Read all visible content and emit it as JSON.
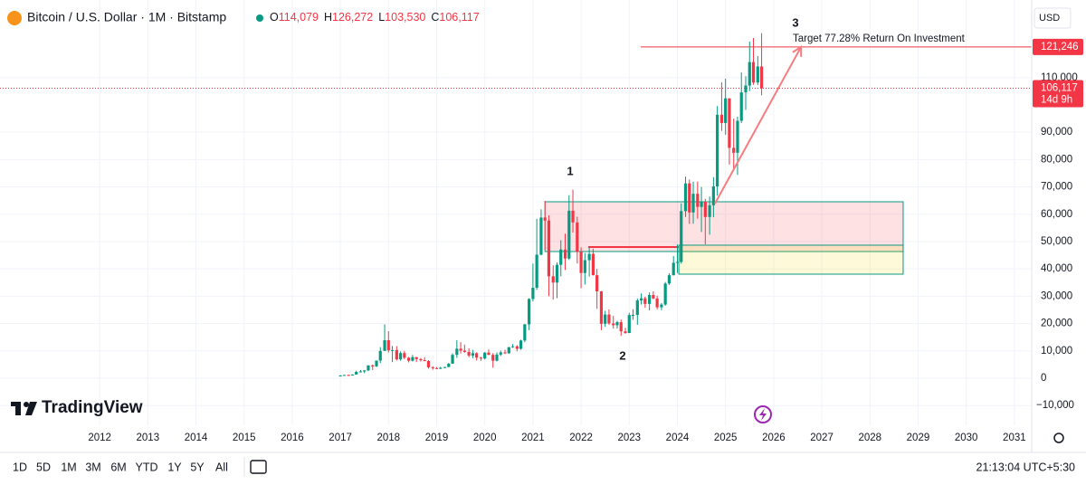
{
  "header": {
    "title": "Bitcoin / U.S. Dollar · 1M · Bitstamp",
    "ohlc_names": [
      "O",
      "H",
      "L",
      "C"
    ],
    "ohlc_values": [
      "114,079",
      "126,272",
      "103,530",
      "106,117"
    ],
    "currency": "USD"
  },
  "chart_data": {
    "type": "candlestick",
    "up_color": "#089981",
    "down_color": "#f23645",
    "grid": true,
    "xlim": [
      2009.93,
      2031.36
    ],
    "xticks": [
      2012,
      2013,
      2014,
      2015,
      2016,
      2017,
      2018,
      2019,
      2020,
      2021,
      2022,
      2023,
      2024,
      2025,
      2026,
      2027,
      2028,
      2029,
      2030,
      2031
    ],
    "ylim": [
      -16560,
      136750
    ],
    "yticks": [
      {
        "value": -10000,
        "label": "−10,000"
      },
      0,
      {
        "value": 10000,
        "label": "10,000"
      },
      {
        "value": 20000,
        "label": "20,000"
      },
      {
        "value": 30000,
        "label": "30,000"
      },
      {
        "value": 40000,
        "label": "40,000"
      },
      {
        "value": 50000,
        "label": "50,000"
      },
      {
        "value": 60000,
        "label": "60,000"
      },
      {
        "value": 70000,
        "label": "70,000"
      },
      {
        "value": 80000,
        "label": "80,000"
      },
      {
        "value": 90000,
        "label": "90,000"
      },
      {
        "value": 110000,
        "label": "110,000"
      }
    ],
    "x": [
      2017.0,
      2017.08,
      2017.17,
      2017.25,
      2017.33,
      2017.42,
      2017.5,
      2017.58,
      2017.67,
      2017.75,
      2017.83,
      2017.92,
      2018.0,
      2018.08,
      2018.17,
      2018.25,
      2018.33,
      2018.42,
      2018.5,
      2018.58,
      2018.67,
      2018.75,
      2018.83,
      2018.92,
      2019.0,
      2019.08,
      2019.17,
      2019.25,
      2019.33,
      2019.42,
      2019.5,
      2019.58,
      2019.67,
      2019.75,
      2019.83,
      2019.92,
      2020.0,
      2020.08,
      2020.17,
      2020.25,
      2020.33,
      2020.42,
      2020.5,
      2020.58,
      2020.67,
      2020.75,
      2020.83,
      2020.92,
      2021.0,
      2021.08,
      2021.17,
      2021.25,
      2021.33,
      2021.42,
      2021.5,
      2021.58,
      2021.67,
      2021.75,
      2021.83,
      2021.92,
      2022.0,
      2022.08,
      2022.17,
      2022.25,
      2022.33,
      2022.42,
      2022.5,
      2022.58,
      2022.67,
      2022.75,
      2022.83,
      2022.92,
      2023.0,
      2023.08,
      2023.17,
      2023.25,
      2023.33,
      2023.42,
      2023.5,
      2023.58,
      2023.67,
      2023.75,
      2023.83,
      2023.92,
      2024.0,
      2024.08,
      2024.17,
      2024.25,
      2024.33,
      2024.42,
      2024.5,
      2024.58,
      2024.67,
      2024.75,
      2024.83,
      2024.92,
      2025.0,
      2025.08,
      2025.17,
      2025.25,
      2025.33,
      2025.42,
      2025.5,
      2025.58,
      2025.67,
      2025.75
    ],
    "ohlc": [
      [
        960,
        1150,
        750,
        970
      ],
      [
        970,
        1210,
        920,
        1190
      ],
      [
        1190,
        1350,
        890,
        1080
      ],
      [
        1080,
        1420,
        1060,
        1350
      ],
      [
        1350,
        2760,
        1350,
        2300
      ],
      [
        2300,
        3000,
        2100,
        2480
      ],
      [
        2480,
        2950,
        1830,
        2870
      ],
      [
        2870,
        4750,
        2600,
        4700
      ],
      [
        4700,
        5000,
        2980,
        4340
      ],
      [
        4340,
        6450,
        4100,
        6450
      ],
      [
        6450,
        11400,
        5500,
        10000
      ],
      [
        10000,
        19700,
        10000,
        13900
      ],
      [
        13900,
        17200,
        9400,
        10200
      ],
      [
        10200,
        11800,
        5900,
        10300
      ],
      [
        10300,
        11700,
        6500,
        6900
      ],
      [
        6900,
        9800,
        6400,
        9200
      ],
      [
        9200,
        10000,
        7000,
        7500
      ],
      [
        7500,
        7800,
        5800,
        6400
      ],
      [
        6400,
        8500,
        6100,
        7700
      ],
      [
        7700,
        7800,
        5900,
        7000
      ],
      [
        7000,
        7400,
        6100,
        6600
      ],
      [
        6600,
        7700,
        6200,
        6300
      ],
      [
        6300,
        6600,
        3500,
        4000
      ],
      [
        4000,
        4400,
        3100,
        3700
      ],
      [
        3700,
        4100,
        3400,
        3450
      ],
      [
        3450,
        4200,
        3350,
        3800
      ],
      [
        3800,
        4150,
        3700,
        4100
      ],
      [
        4100,
        5600,
        4050,
        5300
      ],
      [
        5300,
        9100,
        5300,
        8550
      ],
      [
        8550,
        13900,
        7450,
        10800
      ],
      [
        10800,
        13200,
        9050,
        10100
      ],
      [
        10100,
        12300,
        9350,
        9600
      ],
      [
        9600,
        10900,
        7700,
        8300
      ],
      [
        8300,
        10400,
        7300,
        9150
      ],
      [
        9150,
        9500,
        6500,
        7550
      ],
      [
        7550,
        7800,
        6400,
        7200
      ],
      [
        7200,
        9600,
        6850,
        9350
      ],
      [
        9350,
        10500,
        8450,
        8550
      ],
      [
        8550,
        9200,
        3850,
        6400
      ],
      [
        6400,
        9450,
        6150,
        8650
      ],
      [
        8650,
        10100,
        8100,
        9450
      ],
      [
        9450,
        10400,
        8850,
        9150
      ],
      [
        9150,
        11450,
        8950,
        11350
      ],
      [
        11350,
        12500,
        11100,
        11650
      ],
      [
        11650,
        12100,
        9850,
        10780
      ],
      [
        10780,
        14100,
        10400,
        13800
      ],
      [
        13800,
        19900,
        13200,
        19700
      ],
      [
        19700,
        29300,
        17600,
        29000
      ],
      [
        29000,
        41950,
        28100,
        33100
      ],
      [
        33100,
        58350,
        32300,
        45200
      ],
      [
        45200,
        61800,
        45000,
        58800
      ],
      [
        58800,
        64900,
        47000,
        57700
      ],
      [
        57700,
        59600,
        30000,
        37300
      ],
      [
        37300,
        41300,
        28800,
        35000
      ],
      [
        35000,
        42400,
        29300,
        41500
      ],
      [
        41500,
        50500,
        37300,
        47100
      ],
      [
        47100,
        52900,
        39600,
        43800
      ],
      [
        43800,
        67000,
        43300,
        61300
      ],
      [
        61300,
        69000,
        53300,
        57000
      ],
      [
        57000,
        59100,
        42000,
        46200
      ],
      [
        46200,
        47900,
        32900,
        38500
      ],
      [
        38500,
        45800,
        34300,
        43200
      ],
      [
        43200,
        48200,
        37200,
        45500
      ],
      [
        45500,
        47400,
        37600,
        37700
      ],
      [
        37700,
        40000,
        25400,
        31800
      ],
      [
        31800,
        31900,
        17600,
        19900
      ],
      [
        19900,
        24700,
        18800,
        23300
      ],
      [
        23300,
        25200,
        19500,
        20050
      ],
      [
        20050,
        22800,
        18150,
        19400
      ],
      [
        19400,
        21000,
        18200,
        20500
      ],
      [
        20500,
        21450,
        15500,
        17150
      ],
      [
        17150,
        18400,
        16250,
        16550
      ],
      [
        16550,
        23950,
        16500,
        23100
      ],
      [
        23100,
        25250,
        21400,
        23150
      ],
      [
        23150,
        29200,
        19550,
        28450
      ],
      [
        28450,
        31000,
        26950,
        29250
      ],
      [
        29250,
        29850,
        25800,
        27200
      ],
      [
        27200,
        31400,
        24800,
        30450
      ],
      [
        30450,
        31800,
        28900,
        29200
      ],
      [
        29200,
        30200,
        25200,
        25950
      ],
      [
        25950,
        27500,
        24900,
        26950
      ],
      [
        26950,
        35200,
        26550,
        34650
      ],
      [
        34650,
        38400,
        34100,
        37700
      ],
      [
        37700,
        44700,
        37600,
        42250
      ],
      [
        42250,
        48950,
        38500,
        42550
      ],
      [
        42550,
        64000,
        41900,
        61150
      ],
      [
        61150,
        73800,
        59000,
        71300
      ],
      [
        71300,
        72700,
        56500,
        60650
      ],
      [
        60650,
        71950,
        56550,
        67500
      ],
      [
        67500,
        71950,
        58400,
        62700
      ],
      [
        62700,
        70000,
        53500,
        64600
      ],
      [
        64600,
        65600,
        49000,
        59000
      ],
      [
        59000,
        66500,
        52550,
        63300
      ],
      [
        63300,
        73600,
        58900,
        70200
      ],
      [
        70200,
        99600,
        66800,
        96400
      ],
      [
        96400,
        108300,
        90500,
        93400
      ],
      [
        93400,
        109600,
        89100,
        102400
      ],
      [
        102400,
        102500,
        78200,
        84300
      ],
      [
        84300,
        95000,
        76600,
        82500
      ],
      [
        82500,
        95700,
        74400,
        94200
      ],
      [
        94200,
        111900,
        93400,
        104600
      ],
      [
        104600,
        110500,
        98200,
        107100
      ],
      [
        107100,
        123200,
        105100,
        115700
      ],
      [
        115700,
        124500,
        107400,
        108200
      ],
      [
        108200,
        117900,
        107300,
        114079
      ],
      [
        114079,
        126272,
        103530,
        106117
      ]
    ],
    "zones": [
      {
        "color": "#f23645",
        "top": 64570,
        "bottom": 46360,
        "x": [
          2021.25,
          2028.69
        ]
      },
      {
        "color": "#f5d600",
        "top": 48680,
        "bottom": 38080,
        "x": [
          2024.03,
          2028.69
        ]
      }
    ],
    "support_line": {
      "value": 48000,
      "x": [
        2022.15,
        2024.03
      ]
    },
    "target_line": {
      "value": 121246,
      "label": "121,246",
      "x": [
        2023.24,
        2031.36
      ]
    },
    "last_price": {
      "value": 106117,
      "label": "106,117",
      "countdown": "14d 9h"
    },
    "arrow": {
      "x": [
        2024.78,
        2026.57
      ],
      "y": [
        63900,
        121246
      ]
    },
    "annotations": [
      "1",
      "2",
      "3",
      "Target  77.28% Return On Investment"
    ]
  },
  "footer": {
    "logo": "TradingView",
    "timeframes": [
      "1D",
      "5D",
      "1M",
      "3M",
      "6M",
      "YTD",
      "1Y",
      "5Y",
      "All"
    ],
    "clock": "21:13:04 UTC+5:30"
  }
}
